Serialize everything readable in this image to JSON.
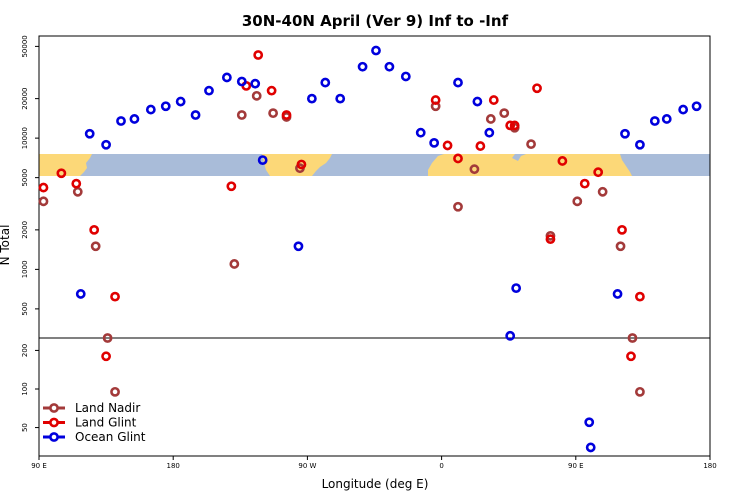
{
  "chart_data": {
    "type": "scatter",
    "title": "30N-40N April (Ver 9)   Inf to -Inf",
    "xlabel": "Longitude (deg E)",
    "ylabel": "N Total",
    "x_ticks": [
      {
        "value": 90,
        "label": "90 E"
      },
      {
        "value": 180,
        "label": "180"
      },
      {
        "value": 270,
        "label": "90 W"
      },
      {
        "value": 360,
        "label": "0"
      },
      {
        "value": 450,
        "label": "90 E"
      },
      {
        "value": 540,
        "label": "180"
      }
    ],
    "xlim": [
      90,
      540
    ],
    "y_ticks_upper": [
      500,
      1000,
      2000,
      5000,
      10000,
      20000,
      50000
    ],
    "y_ticks_lower": [
      50,
      100,
      200
    ],
    "ylim_upper": [
      300,
      60000
    ],
    "ylim_lower": [
      30,
      250
    ],
    "colors": {
      "land_nadir": "#a33a3a",
      "land_glint": "#e00000",
      "ocean_glint": "#0000dd",
      "map_ocean": "#a9bcd9",
      "map_land": "#fcd878"
    },
    "legend": {
      "position": "bottom-left"
    },
    "series": [
      {
        "name": "Land Nadir",
        "color": "#a33a3a",
        "points": [
          [
            93,
            3300
          ],
          [
            116,
            3900
          ],
          [
            128,
            1500
          ],
          [
            136,
            300
          ],
          [
            141,
            95
          ],
          [
            221,
            1100
          ],
          [
            226,
            15000
          ],
          [
            236,
            21000
          ],
          [
            247,
            15500
          ],
          [
            256,
            14500
          ],
          [
            265,
            5900
          ],
          [
            356,
            17500
          ],
          [
            371,
            3000
          ],
          [
            382,
            5800
          ],
          [
            393,
            14000
          ],
          [
            402,
            15500
          ],
          [
            409,
            12000
          ],
          [
            420,
            9000
          ],
          [
            433,
            1800
          ],
          [
            451,
            3300
          ],
          [
            468,
            3900
          ],
          [
            480,
            1500
          ],
          [
            488,
            300
          ],
          [
            493,
            95
          ]
        ]
      },
      {
        "name": "Land Glint",
        "color": "#e00000",
        "points": [
          [
            93,
            4200
          ],
          [
            105,
            5400
          ],
          [
            115,
            4500
          ],
          [
            127,
            2000
          ],
          [
            135,
            180
          ],
          [
            141,
            620
          ],
          [
            219,
            4300
          ],
          [
            229,
            25000
          ],
          [
            237,
            43000
          ],
          [
            246,
            23000
          ],
          [
            256,
            15000
          ],
          [
            266,
            6300
          ],
          [
            356,
            19500
          ],
          [
            364,
            8800
          ],
          [
            371,
            7000
          ],
          [
            386,
            8700
          ],
          [
            395,
            19500
          ],
          [
            406,
            12500
          ],
          [
            409,
            12500
          ],
          [
            424,
            24000
          ],
          [
            433,
            1700
          ],
          [
            441,
            6700
          ],
          [
            456,
            4500
          ],
          [
            465,
            5500
          ],
          [
            481,
            2000
          ],
          [
            487,
            180
          ],
          [
            493,
            620
          ]
        ]
      },
      {
        "name": "Ocean Glint",
        "color": "#0000dd",
        "points": [
          [
            118,
            650
          ],
          [
            124,
            10800
          ],
          [
            135,
            8900
          ],
          [
            145,
            13500
          ],
          [
            154,
            14000
          ],
          [
            165,
            16500
          ],
          [
            175,
            17500
          ],
          [
            185,
            19000
          ],
          [
            195,
            15000
          ],
          [
            204,
            23000
          ],
          [
            216,
            29000
          ],
          [
            226,
            27000
          ],
          [
            235,
            26000
          ],
          [
            240,
            6800
          ],
          [
            264,
            1500
          ],
          [
            273,
            20000
          ],
          [
            282,
            26500
          ],
          [
            292,
            20000
          ],
          [
            307,
            35000
          ],
          [
            316,
            46500
          ],
          [
            325,
            35000
          ],
          [
            336,
            29500
          ],
          [
            346,
            11000
          ],
          [
            355,
            9200
          ],
          [
            371,
            26500
          ],
          [
            384,
            19000
          ],
          [
            392,
            11000
          ],
          [
            406,
            260
          ],
          [
            410,
            720
          ],
          [
            459,
            55
          ],
          [
            460,
            35
          ],
          [
            478,
            650
          ],
          [
            483,
            10800
          ],
          [
            493,
            8900
          ],
          [
            503,
            13500
          ],
          [
            511,
            14000
          ],
          [
            522,
            16500
          ],
          [
            531,
            17500
          ]
        ]
      }
    ]
  }
}
